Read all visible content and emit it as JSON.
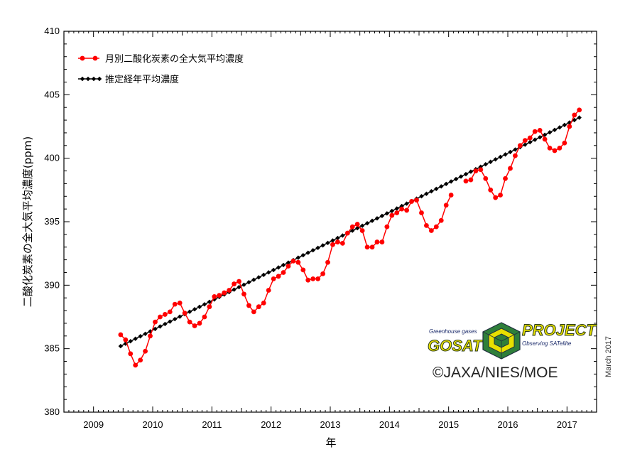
{
  "chart_data": {
    "type": "line",
    "ylabel": "二酸化炭素の全大気平均濃度(ppm)",
    "xlabel": "年",
    "ylim": [
      380,
      410
    ],
    "xlim": [
      2008.5,
      2017.5
    ],
    "yticks": [
      380,
      385,
      390,
      395,
      400,
      405,
      410
    ],
    "xticks": [
      2009,
      2010,
      2011,
      2012,
      2013,
      2014,
      2015,
      2016,
      2017
    ],
    "grid": false,
    "legend": "top-left",
    "series": [
      {
        "name": "月別二酸化炭素の全大気平均濃度",
        "color": "#ff0000",
        "marker": "circle",
        "segments": [
          {
            "start": [
              2009,
              6
            ],
            "values": [
              386.1,
              385.7,
              384.6,
              383.7,
              384.1,
              384.8,
              386.0,
              387.1,
              387.5,
              387.7,
              387.9,
              388.5,
              388.6,
              387.8,
              387.1,
              386.8,
              387.0,
              387.5,
              388.3,
              389.1,
              389.2,
              389.4,
              389.6,
              390.1,
              390.3,
              389.3,
              388.4,
              387.9,
              388.3,
              388.6,
              389.6,
              390.5,
              390.7,
              391.0,
              391.5,
              391.9,
              391.8,
              391.2,
              390.4,
              390.5,
              390.5,
              390.9,
              391.8,
              393.2,
              393.4,
              393.3,
              394.1,
              394.6,
              394.8,
              394.3,
              393.0,
              393.0,
              393.4,
              393.4,
              394.6,
              395.5,
              395.7,
              396.0,
              395.9,
              396.6,
              396.7,
              395.7,
              394.7,
              394.3,
              394.6,
              395.1,
              396.3,
              397.1
            ]
          },
          {
            "start": [
              2015,
              4
            ],
            "values": [
              398.2,
              398.3,
              399.0,
              399.1,
              398.4,
              397.5,
              396.9,
              397.1,
              398.4,
              399.2,
              400.2,
              401.0,
              401.4,
              401.6,
              402.1,
              402.2,
              401.5,
              400.8,
              400.6,
              400.8,
              401.2,
              402.5,
              403.4,
              403.8
            ]
          }
        ]
      },
      {
        "name": "推定経年平均濃度",
        "color": "#000000",
        "marker": "diamond",
        "start": [
          2009,
          6
        ],
        "end": [
          2017,
          3
        ],
        "y_start": 385.2,
        "y_end": 403.2
      }
    ]
  },
  "annotations": {
    "copyright": "©JAXA/NIES/MOE",
    "date_note": "March 2017",
    "logo": {
      "tagline_top": "Greenhouse gases",
      "word_left": "GOSAT",
      "word_right": "PROJECT",
      "tagline_bottom": "Observing SATellite",
      "colors": {
        "yellow": "#e8e000",
        "green": "#2f7f3a",
        "dark": "#1f2f3f"
      }
    }
  }
}
